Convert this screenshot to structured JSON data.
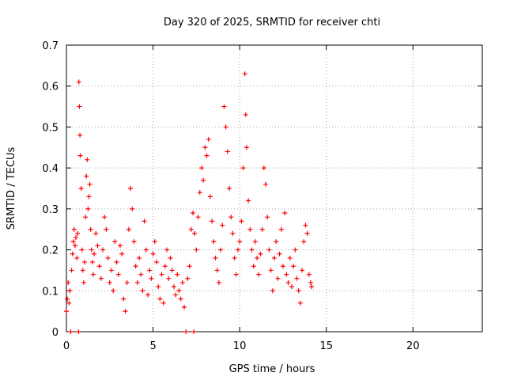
{
  "chart_data": {
    "type": "scatter",
    "title": "Day 320 of 2025, SRMTID for receiver chti",
    "xlabel": "GPS time / hours",
    "ylabel": "SRMTID / TECUs",
    "xlim": [
      0,
      24
    ],
    "ylim": [
      0,
      0.7
    ],
    "xticks": [
      0,
      5,
      10,
      15,
      20
    ],
    "xtick_labels": [
      "0",
      "5",
      "10",
      "15",
      "20"
    ],
    "yticks": [
      0,
      0.1,
      0.2,
      0.3,
      0.4,
      0.5,
      0.6,
      0.7
    ],
    "ytick_labels": [
      "0",
      "0.1",
      "0.2",
      "0.3",
      "0.4",
      "0.5",
      "0.6",
      "0.7"
    ],
    "grid": true,
    "marker": "+",
    "series_color": "#ff0000",
    "series": [
      {
        "name": "SRMTID",
        "points": [
          [
            0.0,
            0.05
          ],
          [
            0.05,
            0.08
          ],
          [
            0.1,
            0.12
          ],
          [
            0.15,
            0.07
          ],
          [
            0.2,
            0.1
          ],
          [
            0.25,
            0.0
          ],
          [
            0.3,
            0.15
          ],
          [
            0.35,
            0.19
          ],
          [
            0.4,
            0.22
          ],
          [
            0.45,
            0.25
          ],
          [
            0.5,
            0.21
          ],
          [
            0.55,
            0.23
          ],
          [
            0.6,
            0.18
          ],
          [
            0.65,
            0.24
          ],
          [
            0.7,
            0.0
          ],
          [
            0.72,
            0.61
          ],
          [
            0.75,
            0.55
          ],
          [
            0.78,
            0.48
          ],
          [
            0.8,
            0.43
          ],
          [
            0.85,
            0.35
          ],
          [
            0.9,
            0.2
          ],
          [
            0.95,
            0.15
          ],
          [
            1.0,
            0.12
          ],
          [
            1.05,
            0.17
          ],
          [
            1.1,
            0.28
          ],
          [
            1.15,
            0.38
          ],
          [
            1.2,
            0.42
          ],
          [
            1.25,
            0.3
          ],
          [
            1.3,
            0.33
          ],
          [
            1.35,
            0.36
          ],
          [
            1.4,
            0.25
          ],
          [
            1.45,
            0.2
          ],
          [
            1.5,
            0.17
          ],
          [
            1.55,
            0.14
          ],
          [
            1.6,
            0.19
          ],
          [
            1.7,
            0.24
          ],
          [
            1.8,
            0.21
          ],
          [
            1.9,
            0.16
          ],
          [
            2.0,
            0.13
          ],
          [
            2.1,
            0.2
          ],
          [
            2.2,
            0.28
          ],
          [
            2.3,
            0.25
          ],
          [
            2.4,
            0.18
          ],
          [
            2.5,
            0.12
          ],
          [
            2.6,
            0.15
          ],
          [
            2.7,
            0.1
          ],
          [
            2.8,
            0.22
          ],
          [
            2.9,
            0.17
          ],
          [
            3.0,
            0.14
          ],
          [
            3.1,
            0.21
          ],
          [
            3.2,
            0.19
          ],
          [
            3.3,
            0.08
          ],
          [
            3.4,
            0.05
          ],
          [
            3.5,
            0.12
          ],
          [
            3.6,
            0.25
          ],
          [
            3.7,
            0.35
          ],
          [
            3.8,
            0.3
          ],
          [
            3.9,
            0.22
          ],
          [
            4.0,
            0.16
          ],
          [
            4.1,
            0.12
          ],
          [
            4.2,
            0.18
          ],
          [
            4.3,
            0.14
          ],
          [
            4.4,
            0.1
          ],
          [
            4.5,
            0.27
          ],
          [
            4.6,
            0.2
          ],
          [
            4.7,
            0.09
          ],
          [
            4.8,
            0.15
          ],
          [
            4.9,
            0.13
          ],
          [
            5.0,
            0.19
          ],
          [
            5.1,
            0.22
          ],
          [
            5.2,
            0.17
          ],
          [
            5.3,
            0.11
          ],
          [
            5.4,
            0.08
          ],
          [
            5.5,
            0.14
          ],
          [
            5.6,
            0.07
          ],
          [
            5.7,
            0.16
          ],
          [
            5.8,
            0.2
          ],
          [
            5.9,
            0.13
          ],
          [
            6.0,
            0.18
          ],
          [
            6.1,
            0.15
          ],
          [
            6.2,
            0.11
          ],
          [
            6.3,
            0.09
          ],
          [
            6.4,
            0.14
          ],
          [
            6.5,
            0.1
          ],
          [
            6.6,
            0.08
          ],
          [
            6.7,
            0.12
          ],
          [
            6.8,
            0.06
          ],
          [
            6.9,
            0.0
          ],
          [
            7.0,
            0.13
          ],
          [
            7.1,
            0.16
          ],
          [
            7.2,
            0.25
          ],
          [
            7.3,
            0.29
          ],
          [
            7.35,
            0.0
          ],
          [
            7.4,
            0.24
          ],
          [
            7.5,
            0.2
          ],
          [
            7.6,
            0.28
          ],
          [
            7.7,
            0.34
          ],
          [
            7.8,
            0.4
          ],
          [
            7.9,
            0.37
          ],
          [
            8.0,
            0.45
          ],
          [
            8.1,
            0.43
          ],
          [
            8.2,
            0.47
          ],
          [
            8.3,
            0.33
          ],
          [
            8.4,
            0.27
          ],
          [
            8.5,
            0.22
          ],
          [
            8.6,
            0.18
          ],
          [
            8.7,
            0.15
          ],
          [
            8.8,
            0.12
          ],
          [
            8.9,
            0.2
          ],
          [
            9.0,
            0.26
          ],
          [
            9.1,
            0.55
          ],
          [
            9.2,
            0.5
          ],
          [
            9.3,
            0.44
          ],
          [
            9.4,
            0.35
          ],
          [
            9.5,
            0.28
          ],
          [
            9.6,
            0.24
          ],
          [
            9.7,
            0.18
          ],
          [
            9.8,
            0.14
          ],
          [
            9.9,
            0.2
          ],
          [
            10.0,
            0.22
          ],
          [
            10.1,
            0.27
          ],
          [
            10.2,
            0.4
          ],
          [
            10.3,
            0.63
          ],
          [
            10.35,
            0.53
          ],
          [
            10.4,
            0.45
          ],
          [
            10.5,
            0.32
          ],
          [
            10.6,
            0.25
          ],
          [
            10.7,
            0.2
          ],
          [
            10.8,
            0.16
          ],
          [
            10.9,
            0.22
          ],
          [
            11.0,
            0.18
          ],
          [
            11.1,
            0.14
          ],
          [
            11.2,
            0.19
          ],
          [
            11.3,
            0.25
          ],
          [
            11.4,
            0.4
          ],
          [
            11.5,
            0.36
          ],
          [
            11.6,
            0.28
          ],
          [
            11.7,
            0.2
          ],
          [
            11.8,
            0.15
          ],
          [
            11.9,
            0.1
          ],
          [
            12.0,
            0.18
          ],
          [
            12.1,
            0.22
          ],
          [
            12.2,
            0.13
          ],
          [
            12.3,
            0.19
          ],
          [
            12.4,
            0.25
          ],
          [
            12.5,
            0.16
          ],
          [
            12.6,
            0.29
          ],
          [
            12.7,
            0.14
          ],
          [
            12.8,
            0.12
          ],
          [
            12.9,
            0.18
          ],
          [
            13.0,
            0.11
          ],
          [
            13.1,
            0.16
          ],
          [
            13.2,
            0.2
          ],
          [
            13.3,
            0.13
          ],
          [
            13.4,
            0.1
          ],
          [
            13.5,
            0.07
          ],
          [
            13.6,
            0.15
          ],
          [
            13.7,
            0.22
          ],
          [
            13.8,
            0.26
          ],
          [
            13.9,
            0.24
          ],
          [
            14.0,
            0.14
          ],
          [
            14.1,
            0.12
          ],
          [
            14.15,
            0.11
          ]
        ]
      }
    ]
  }
}
